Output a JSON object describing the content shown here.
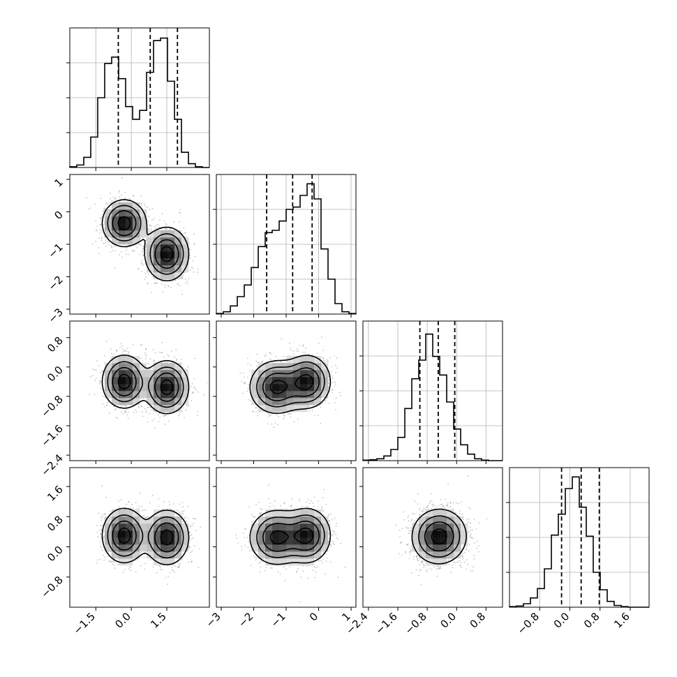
{
  "figure": {
    "kind": "corner-plot",
    "ndim": 4,
    "background": "#ffffff"
  },
  "chart_data": {
    "type": "corner",
    "dimensions": [
      {
        "range": [
          -2.6,
          3.3
        ],
        "ticks": [
          -1.5,
          0.0,
          1.5
        ],
        "tick_labels": [
          "−1.5",
          "0.0",
          "1.5"
        ]
      },
      {
        "range": [
          -3.15,
          1.15
        ],
        "ticks": [
          -3,
          -2,
          -1,
          0,
          1
        ],
        "tick_labels": [
          "−3",
          "−2",
          "−1",
          "0",
          "1"
        ]
      },
      {
        "range": [
          -2.55,
          1.25
        ],
        "ticks": [
          -2.4,
          -1.6,
          -0.8,
          0.0,
          0.8
        ],
        "tick_labels": [
          "−2.4",
          "−1.6",
          "−0.8",
          "0.0",
          "0.8"
        ]
      },
      {
        "range": [
          -1.6,
          2.1
        ],
        "ticks": [
          -0.8,
          0.0,
          0.8,
          1.6
        ],
        "tick_labels": [
          "−0.8",
          "0.0",
          "0.8",
          "1.6"
        ]
      }
    ],
    "histograms": [
      {
        "bin_edges_range": [
          -2.6,
          3.3
        ],
        "bins": 20,
        "counts": [
          0.6,
          2,
          8,
          24,
          55,
          82,
          87,
          70,
          48,
          38,
          45,
          75,
          100,
          102,
          68,
          38,
          12,
          3,
          0.6,
          0
        ],
        "quantiles": [
          -0.55,
          0.8,
          1.95
        ],
        "hist_ylim": [
          0,
          110
        ]
      },
      {
        "bin_edges_range": [
          -3.15,
          1.15
        ],
        "bins": 20,
        "counts": [
          0.5,
          2,
          7,
          15,
          25,
          40,
          58,
          70,
          72,
          80,
          90,
          92,
          102,
          112,
          99,
          56,
          30,
          9,
          2,
          0.5
        ],
        "quantiles": [
          -1.6,
          -0.8,
          -0.2
        ],
        "hist_ylim": [
          0,
          120
        ]
      },
      {
        "bin_edges_range": [
          -2.55,
          1.25
        ],
        "bins": 20,
        "counts": [
          0.5,
          1,
          2,
          5,
          12,
          25,
          56,
          88,
          108,
          136,
          112,
          92,
          63,
          34,
          17,
          7,
          2,
          0.5,
          0,
          0
        ],
        "quantiles": [
          -1.0,
          -0.5,
          -0.05
        ],
        "hist_ylim": [
          0,
          150
        ]
      },
      {
        "bin_edges_range": [
          -1.6,
          2.1
        ],
        "bins": 20,
        "counts": [
          0.5,
          1,
          3,
          8,
          16,
          33,
          62,
          80,
          102,
          112,
          86,
          61,
          30,
          15,
          5,
          1.5,
          0.5,
          0,
          0,
          0
        ],
        "quantiles": [
          -0.22,
          0.3,
          0.78
        ],
        "hist_ylim": [
          0,
          120
        ]
      }
    ],
    "joint_modes": [
      {
        "weight": 0.5,
        "mean": [
          -0.3,
          -0.35,
          -0.4,
          0.3
        ],
        "std": [
          0.45,
          0.35,
          0.35,
          0.35
        ]
      },
      {
        "weight": 0.5,
        "mean": [
          1.5,
          -1.3,
          -0.55,
          0.25
        ],
        "std": [
          0.45,
          0.4,
          0.35,
          0.35
        ]
      }
    ],
    "contour_levels": [
      0.12,
      0.3,
      0.55,
      0.85
    ],
    "grid": true,
    "line_color": "#000000",
    "scatter_color": "#555555"
  }
}
